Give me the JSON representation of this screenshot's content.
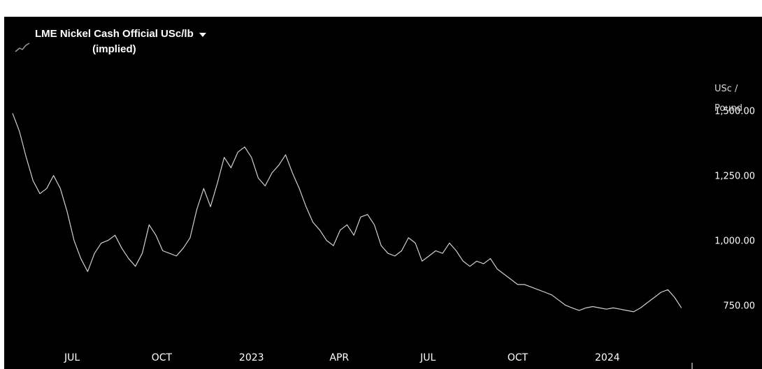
{
  "colors": {
    "background": "#000000",
    "series_line": "#d0d0d0",
    "text": "#ffffff"
  },
  "legend": {
    "icon": "line-series-icon",
    "title_line1": "LME Nickel Cash Official USc/lb",
    "title_line2": "(implied)",
    "dropdown_icon": "caret-down-icon"
  },
  "y_axis": {
    "unit_line1": "USc /",
    "unit_line2": "Pound"
  },
  "chart_data": {
    "type": "line",
    "title": "LME Nickel Cash Official USc/lb (implied)",
    "ylabel": "USc / Pound",
    "xlabel": "",
    "ylim": [
      620,
      1620
    ],
    "xlim": [
      "2022-05-01",
      "2024-03-25"
    ],
    "grid": false,
    "legend_position": "top-left",
    "y_ticks": [
      {
        "value": 1500,
        "label": "1,500.00"
      },
      {
        "value": 1250,
        "label": "1,250.00"
      },
      {
        "value": 1000,
        "label": "1,000.00"
      },
      {
        "value": 750,
        "label": "750.00"
      }
    ],
    "x_ticks": [
      {
        "date": "2022-07-01",
        "label": "JUL"
      },
      {
        "date": "2022-10-01",
        "label": "OCT"
      },
      {
        "date": "2023-01-01",
        "label": "2023"
      },
      {
        "date": "2023-04-01",
        "label": "APR"
      },
      {
        "date": "2023-07-01",
        "label": "JUL"
      },
      {
        "date": "2023-10-01",
        "label": "OCT"
      },
      {
        "date": "2024-01-01",
        "label": "2024"
      }
    ],
    "series": [
      {
        "points": [
          [
            "2022-05-01",
            1490
          ],
          [
            "2022-05-08",
            1420
          ],
          [
            "2022-05-15",
            1320
          ],
          [
            "2022-05-22",
            1230
          ],
          [
            "2022-05-29",
            1180
          ],
          [
            "2022-06-05",
            1200
          ],
          [
            "2022-06-12",
            1250
          ],
          [
            "2022-06-19",
            1200
          ],
          [
            "2022-06-26",
            1110
          ],
          [
            "2022-07-03",
            1000
          ],
          [
            "2022-07-10",
            930
          ],
          [
            "2022-07-17",
            880
          ],
          [
            "2022-07-24",
            950
          ],
          [
            "2022-07-31",
            990
          ],
          [
            "2022-08-07",
            1000
          ],
          [
            "2022-08-14",
            1020
          ],
          [
            "2022-08-21",
            970
          ],
          [
            "2022-08-28",
            930
          ],
          [
            "2022-09-04",
            900
          ],
          [
            "2022-09-11",
            950
          ],
          [
            "2022-09-18",
            1060
          ],
          [
            "2022-09-25",
            1020
          ],
          [
            "2022-10-02",
            960
          ],
          [
            "2022-10-09",
            950
          ],
          [
            "2022-10-16",
            940
          ],
          [
            "2022-10-23",
            970
          ],
          [
            "2022-10-30",
            1010
          ],
          [
            "2022-11-06",
            1120
          ],
          [
            "2022-11-13",
            1200
          ],
          [
            "2022-11-20",
            1130
          ],
          [
            "2022-11-27",
            1220
          ],
          [
            "2022-12-04",
            1320
          ],
          [
            "2022-12-11",
            1280
          ],
          [
            "2022-12-18",
            1340
          ],
          [
            "2022-12-25",
            1360
          ],
          [
            "2023-01-01",
            1320
          ],
          [
            "2023-01-08",
            1240
          ],
          [
            "2023-01-15",
            1210
          ],
          [
            "2023-01-22",
            1260
          ],
          [
            "2023-01-29",
            1290
          ],
          [
            "2023-02-05",
            1330
          ],
          [
            "2023-02-12",
            1260
          ],
          [
            "2023-02-19",
            1200
          ],
          [
            "2023-02-26",
            1130
          ],
          [
            "2023-03-05",
            1070
          ],
          [
            "2023-03-12",
            1040
          ],
          [
            "2023-03-19",
            1000
          ],
          [
            "2023-03-26",
            980
          ],
          [
            "2023-04-02",
            1040
          ],
          [
            "2023-04-09",
            1060
          ],
          [
            "2023-04-16",
            1020
          ],
          [
            "2023-04-23",
            1090
          ],
          [
            "2023-04-30",
            1100
          ],
          [
            "2023-05-07",
            1060
          ],
          [
            "2023-05-14",
            980
          ],
          [
            "2023-05-21",
            950
          ],
          [
            "2023-05-28",
            940
          ],
          [
            "2023-06-04",
            960
          ],
          [
            "2023-06-11",
            1010
          ],
          [
            "2023-06-18",
            990
          ],
          [
            "2023-06-25",
            920
          ],
          [
            "2023-07-02",
            940
          ],
          [
            "2023-07-09",
            960
          ],
          [
            "2023-07-16",
            950
          ],
          [
            "2023-07-23",
            990
          ],
          [
            "2023-07-30",
            960
          ],
          [
            "2023-08-06",
            920
          ],
          [
            "2023-08-13",
            900
          ],
          [
            "2023-08-20",
            920
          ],
          [
            "2023-08-27",
            910
          ],
          [
            "2023-09-03",
            930
          ],
          [
            "2023-09-10",
            890
          ],
          [
            "2023-09-17",
            870
          ],
          [
            "2023-09-24",
            850
          ],
          [
            "2023-10-01",
            830
          ],
          [
            "2023-10-08",
            830
          ],
          [
            "2023-10-15",
            820
          ],
          [
            "2023-10-22",
            810
          ],
          [
            "2023-10-29",
            800
          ],
          [
            "2023-11-05",
            790
          ],
          [
            "2023-11-12",
            770
          ],
          [
            "2023-11-19",
            750
          ],
          [
            "2023-11-26",
            740
          ],
          [
            "2023-12-03",
            730
          ],
          [
            "2023-12-10",
            740
          ],
          [
            "2023-12-17",
            745
          ],
          [
            "2023-12-24",
            740
          ],
          [
            "2023-12-31",
            735
          ],
          [
            "2024-01-07",
            740
          ],
          [
            "2024-01-14",
            735
          ],
          [
            "2024-01-21",
            730
          ],
          [
            "2024-01-28",
            725
          ],
          [
            "2024-02-04",
            740
          ],
          [
            "2024-02-11",
            760
          ],
          [
            "2024-02-18",
            780
          ],
          [
            "2024-02-25",
            800
          ],
          [
            "2024-03-03",
            810
          ],
          [
            "2024-03-10",
            780
          ],
          [
            "2024-03-17",
            740
          ]
        ]
      }
    ]
  }
}
